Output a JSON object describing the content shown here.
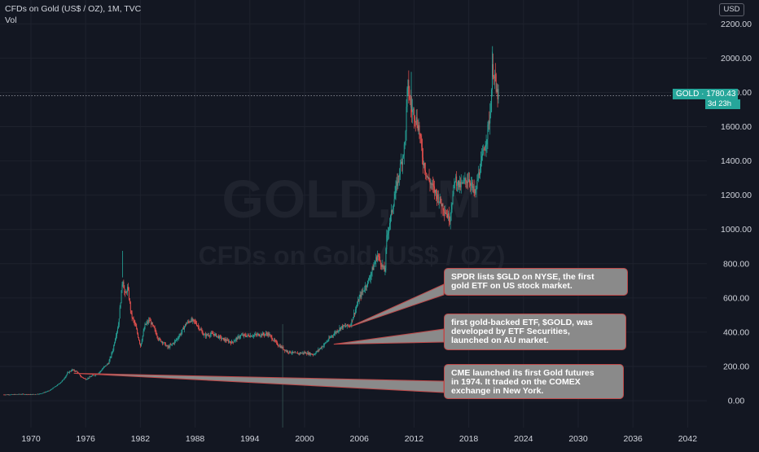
{
  "header": {
    "symbol_line": "CFDs on Gold (US$ / OZ), 1M, TVC",
    "indicator": "Vol"
  },
  "currency": "USD",
  "watermark": {
    "big": "GOLD, 1M",
    "sub": "CFDs on Gold (US$ / OZ)"
  },
  "last_price": {
    "symbol": "GOLD",
    "value": "1780.43",
    "countdown": "3d 23h"
  },
  "annotations": [
    {
      "text": "SPDR lists $GLD on NYSE, the first gold ETF on US stock market.",
      "lines": [
        "SPDR lists $GLD on NYSE, the first",
        "gold ETF on US stock market."
      ],
      "anchor_year": 2004.9,
      "anchor_price": 430
    },
    {
      "text": "first gold-backed ETF, $GOLD, was developed by ETF Securities, launched on AU market.",
      "lines": [
        "first gold-backed ETF, $GOLD, was",
        "developed by ETF Securities,",
        "launched on AU market."
      ],
      "anchor_year": 2003.2,
      "anchor_price": 330
    },
    {
      "text": "CME launched its first Gold futures in 1974. It traded on the COMEX exchange in New York.",
      "lines": [
        "CME launched its first Gold futures",
        "in 1974. It traded on the COMEX",
        "exchange in New York."
      ],
      "anchor_year": 1974.7,
      "anchor_price": 160
    }
  ],
  "colors": {
    "background": "#131722",
    "up": "#26a69a",
    "down": "#ef5350",
    "grid": "#1e222d",
    "text": "#d1d4dc",
    "callout_bg": "#8a8a8a",
    "callout_border": "#c04848",
    "price_tag": "#26a69a"
  },
  "chart_data": {
    "type": "line",
    "x_axis": {
      "ticks": [
        "1970",
        "1976",
        "1982",
        "1988",
        "1994",
        "2000",
        "2006",
        "2012",
        "2018",
        "2024",
        "2030",
        "2036",
        "2042"
      ],
      "range": [
        1967,
        2047
      ]
    },
    "y_axis": {
      "ticks": [
        "0.00",
        "200.00",
        "400.00",
        "600.00",
        "800.00",
        "1000.00",
        "1200.00",
        "1400.00",
        "1600.00",
        "1800.00",
        "2000.00",
        "2200.00"
      ],
      "range": [
        -150,
        2270
      ],
      "last_value": 1780.43
    },
    "series": [
      {
        "x": [
          1967,
          1968,
          1969,
          1970,
          1971,
          1972,
          1973,
          1973.5,
          1974,
          1974.5,
          1975,
          1975.5,
          1976,
          1976.7,
          1977,
          1977.5,
          1978,
          1978.5,
          1979,
          1979.3,
          1979.6,
          1979.9,
          1980.05,
          1980.3,
          1980.6,
          1981,
          1981.5,
          1982,
          1982.5,
          1983,
          1983.5,
          1984,
          1984.5,
          1985,
          1985.5,
          1986,
          1986.5,
          1987,
          1987.5,
          1988,
          1988.5,
          1989,
          1990,
          1991,
          1992,
          1993,
          1994,
          1995,
          1996,
          1997,
          1998,
          1999,
          2000,
          2001,
          2002,
          2003,
          2004,
          2005,
          2006,
          2007,
          2008,
          2008.8,
          2009,
          2010,
          2011,
          2011.3,
          2011.7,
          2012,
          2012.5,
          2013,
          2013.5,
          2014,
          2015,
          2015.9,
          2016.5,
          2017,
          2018,
          2018.7,
          2019,
          2019.5,
          2020,
          2020.4,
          2020.6,
          2020.9,
          2021,
          2021.3
        ],
        "values": [
          35,
          36,
          38,
          36,
          40,
          58,
          95,
          120,
          160,
          180,
          170,
          140,
          125,
          145,
          150,
          165,
          195,
          220,
          300,
          380,
          450,
          620,
          720,
          610,
          660,
          500,
          430,
          320,
          440,
          470,
          420,
          360,
          340,
          310,
          330,
          360,
          400,
          450,
          470,
          460,
          420,
          380,
          390,
          360,
          340,
          380,
          380,
          385,
          390,
          330,
          290,
          275,
          280,
          270,
          320,
          380,
          430,
          440,
          600,
          700,
          850,
          750,
          950,
          1230,
          1500,
          1850,
          1700,
          1680,
          1600,
          1400,
          1300,
          1250,
          1150,
          1060,
          1300,
          1250,
          1300,
          1200,
          1300,
          1420,
          1550,
          1700,
          1950,
          1880,
          1800,
          1780
        ],
        "name": ""
      },
      {
        "x": [
          1997.6
        ],
        "values": [
          1
        ],
        "name": "Vol"
      }
    ]
  }
}
